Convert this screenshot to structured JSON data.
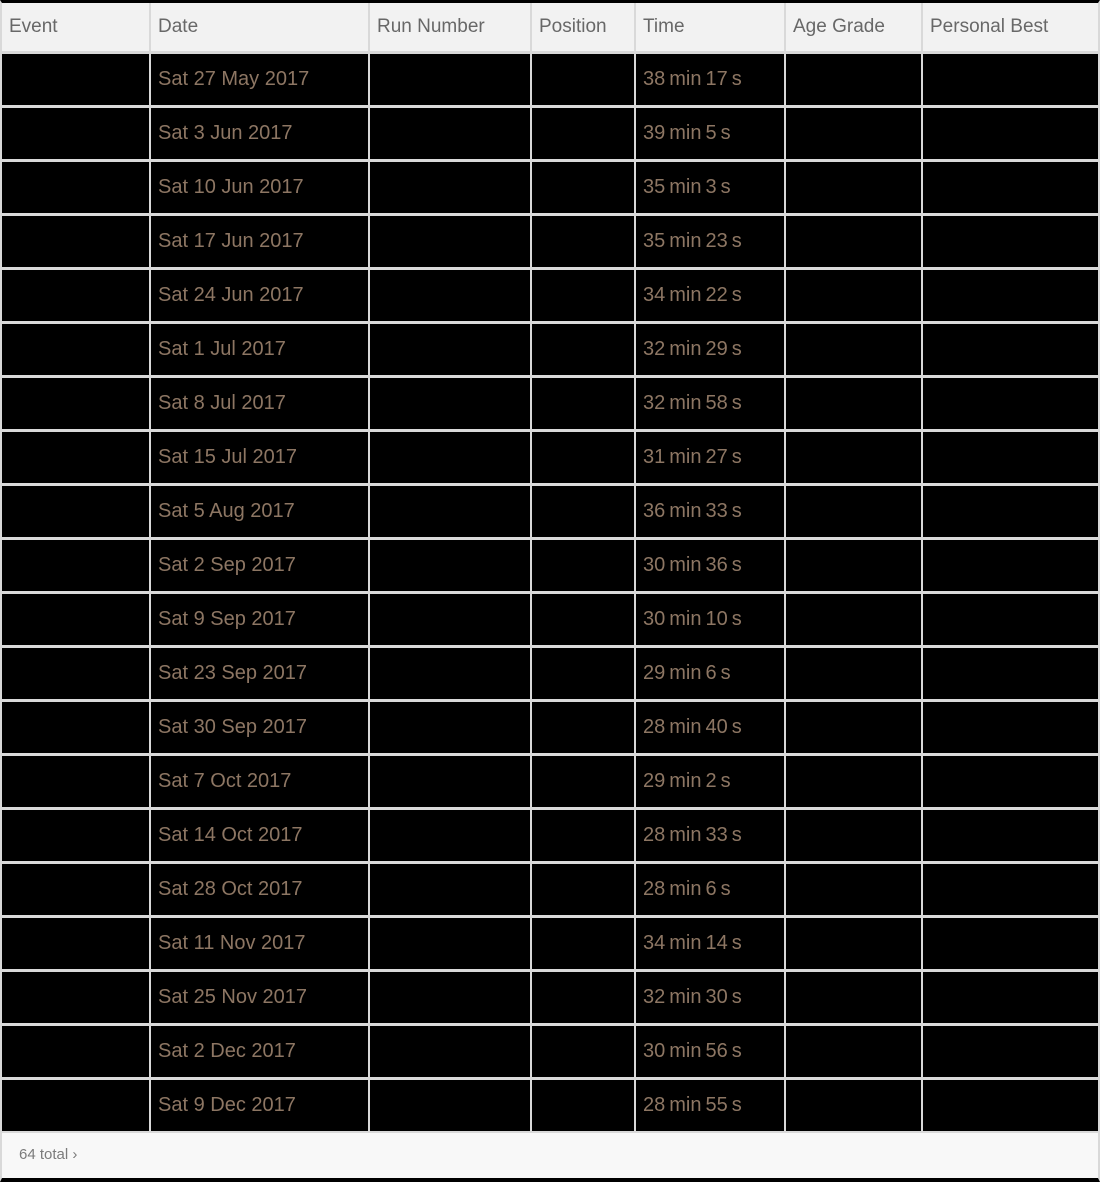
{
  "table": {
    "columns": [
      {
        "key": "event",
        "label": "Event"
      },
      {
        "key": "date",
        "label": "Date"
      },
      {
        "key": "run_number",
        "label": "Run Number"
      },
      {
        "key": "position",
        "label": "Position"
      },
      {
        "key": "time",
        "label": "Time"
      },
      {
        "key": "age_grade",
        "label": "Age Grade"
      },
      {
        "key": "personal_best",
        "label": "Personal Best"
      }
    ],
    "rows": [
      {
        "event": "",
        "date": "Sat 27 May 2017",
        "run_number": "",
        "position": "",
        "time": "38 min 17 s",
        "age_grade": "",
        "personal_best": ""
      },
      {
        "event": "",
        "date": "Sat 3 Jun 2017",
        "run_number": "",
        "position": "",
        "time": "39 min 5 s",
        "age_grade": "",
        "personal_best": ""
      },
      {
        "event": "",
        "date": "Sat 10 Jun 2017",
        "run_number": "",
        "position": "",
        "time": "35 min 3 s",
        "age_grade": "",
        "personal_best": ""
      },
      {
        "event": "",
        "date": "Sat 17 Jun 2017",
        "run_number": "",
        "position": "",
        "time": "35 min 23 s",
        "age_grade": "",
        "personal_best": ""
      },
      {
        "event": "",
        "date": "Sat 24 Jun 2017",
        "run_number": "",
        "position": "",
        "time": "34 min 22 s",
        "age_grade": "",
        "personal_best": ""
      },
      {
        "event": "",
        "date": "Sat 1 Jul 2017",
        "run_number": "",
        "position": "",
        "time": "32 min 29 s",
        "age_grade": "",
        "personal_best": ""
      },
      {
        "event": "",
        "date": "Sat 8 Jul 2017",
        "run_number": "",
        "position": "",
        "time": "32 min 58 s",
        "age_grade": "",
        "personal_best": ""
      },
      {
        "event": "",
        "date": "Sat 15 Jul 2017",
        "run_number": "",
        "position": "",
        "time": "31 min 27 s",
        "age_grade": "",
        "personal_best": ""
      },
      {
        "event": "",
        "date": "Sat 5 Aug 2017",
        "run_number": "",
        "position": "",
        "time": "36 min 33 s",
        "age_grade": "",
        "personal_best": ""
      },
      {
        "event": "",
        "date": "Sat 2 Sep 2017",
        "run_number": "",
        "position": "",
        "time": "30 min 36 s",
        "age_grade": "",
        "personal_best": ""
      },
      {
        "event": "",
        "date": "Sat 9 Sep 2017",
        "run_number": "",
        "position": "",
        "time": "30 min 10 s",
        "age_grade": "",
        "personal_best": ""
      },
      {
        "event": "",
        "date": "Sat 23 Sep 2017",
        "run_number": "",
        "position": "",
        "time": "29 min 6 s",
        "age_grade": "",
        "personal_best": ""
      },
      {
        "event": "",
        "date": "Sat 30 Sep 2017",
        "run_number": "",
        "position": "",
        "time": "28 min 40 s",
        "age_grade": "",
        "personal_best": ""
      },
      {
        "event": "",
        "date": "Sat 7 Oct 2017",
        "run_number": "",
        "position": "",
        "time": "29 min 2 s",
        "age_grade": "",
        "personal_best": ""
      },
      {
        "event": "",
        "date": "Sat 14 Oct 2017",
        "run_number": "",
        "position": "",
        "time": "28 min 33 s",
        "age_grade": "",
        "personal_best": ""
      },
      {
        "event": "",
        "date": "Sat 28 Oct 2017",
        "run_number": "",
        "position": "",
        "time": "28 min 6 s",
        "age_grade": "",
        "personal_best": ""
      },
      {
        "event": "",
        "date": "Sat 11 Nov 2017",
        "run_number": "",
        "position": "",
        "time": "34 min 14 s",
        "age_grade": "",
        "personal_best": ""
      },
      {
        "event": "",
        "date": "Sat 25 Nov 2017",
        "run_number": "",
        "position": "",
        "time": "32 min 30 s",
        "age_grade": "",
        "personal_best": ""
      },
      {
        "event": "",
        "date": "Sat 2 Dec 2017",
        "run_number": "",
        "position": "",
        "time": "30 min 56 s",
        "age_grade": "",
        "personal_best": ""
      },
      {
        "event": "",
        "date": "Sat 9 Dec 2017",
        "run_number": "",
        "position": "",
        "time": "28 min 55 s",
        "age_grade": "",
        "personal_best": ""
      }
    ]
  },
  "footer": {
    "total_label": "64 total",
    "more_arrow": "›"
  },
  "colors": {
    "cell_background": "#000000",
    "cell_text": "#8d7663",
    "header_background": "#f2f2f2",
    "header_text": "#686868",
    "grid_line": "#d9d9d9",
    "outer_border": "#000000",
    "footer_background": "#f8f8f8",
    "footer_text": "#7b7b7b"
  }
}
